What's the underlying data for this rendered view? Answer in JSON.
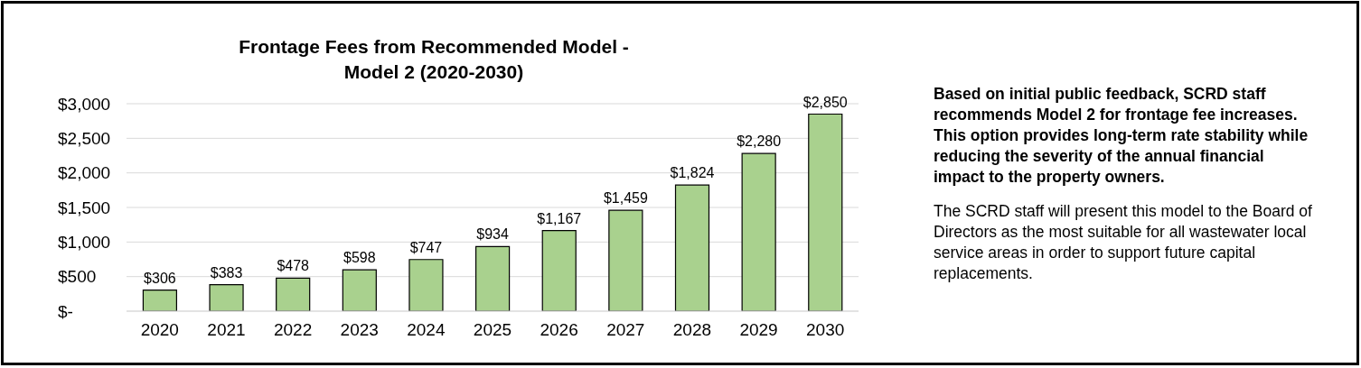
{
  "chart_data": {
    "type": "bar",
    "title": "Frontage Fees from Recommended Model - Model 2 (2020-2030)",
    "categories": [
      "2020",
      "2021",
      "2022",
      "2023",
      "2024",
      "2025",
      "2026",
      "2027",
      "2028",
      "2029",
      "2030"
    ],
    "values": [
      306,
      383,
      478,
      598,
      747,
      934,
      1167,
      1459,
      1824,
      2280,
      2850
    ],
    "value_labels": [
      "$306",
      "$383",
      "$478",
      "$598",
      "$747",
      "$934",
      "$1,167",
      "$1,459",
      "$1,824",
      "$2,280",
      "$2,850"
    ],
    "color": "#a9d18e",
    "ylim": [
      0,
      3000
    ],
    "yticks": [
      {
        "value": 0,
        "label": "$-"
      },
      {
        "value": 500,
        "label": "$500"
      },
      {
        "value": 1000,
        "label": "$1,000"
      },
      {
        "value": 1500,
        "label": "$1,500"
      },
      {
        "value": 2000,
        "label": "$2,000"
      },
      {
        "value": 2500,
        "label": "$2,500"
      },
      {
        "value": 3000,
        "label": "$3,000"
      }
    ],
    "grid": "y",
    "annotations": [
      "Based on initial public feedback, SCRD staff recommends Model 2 for frontage fee increases. This option provides long-term rate stability while reducing the severity of the annual financial impact to the property owners.",
      "The SCRD staff will present this model to the Board of Directors as the most suitable for all wastewater local service areas in order to support future capital replacements."
    ]
  }
}
